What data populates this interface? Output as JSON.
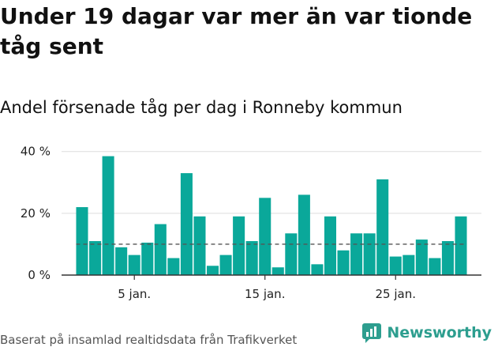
{
  "title": "Under 19 dagar var mer än var tionde tåg sent",
  "subtitle": "Andel försenade tåg per dag i Ronneby kommun",
  "source": "Baserat på insamlad realtidsdata från Trafikverket",
  "brand": "Newsworthy",
  "colors": {
    "bar": "#0aa89a",
    "reference_line": "#555555",
    "grid": "#dddddd",
    "brand": "#2d9e8f"
  },
  "chart_data": {
    "type": "bar",
    "unit": "%",
    "categories": [
      1,
      2,
      3,
      4,
      5,
      6,
      7,
      8,
      9,
      10,
      11,
      12,
      13,
      14,
      15,
      16,
      17,
      18,
      19,
      20,
      21,
      22,
      23,
      24,
      25,
      26,
      27,
      28,
      29,
      30
    ],
    "values": [
      22,
      11,
      38.5,
      9,
      6.5,
      10.5,
      16.5,
      5.5,
      33,
      19,
      3,
      6.5,
      19,
      11,
      25,
      2.5,
      13.5,
      26,
      3.5,
      19,
      8,
      13.5,
      13.5,
      31,
      6,
      6.5,
      11.5,
      5.5,
      11,
      19
    ],
    "reference_line": 10,
    "ylim": [
      0,
      43
    ],
    "yticks": [
      0,
      20,
      40
    ],
    "ytick_labels": [
      "0 %",
      "20 %",
      "40 %"
    ],
    "xticks": [
      5,
      15,
      25
    ],
    "xtick_labels": [
      "5 jan.",
      "15 jan.",
      "25 jan."
    ],
    "grid": true
  }
}
